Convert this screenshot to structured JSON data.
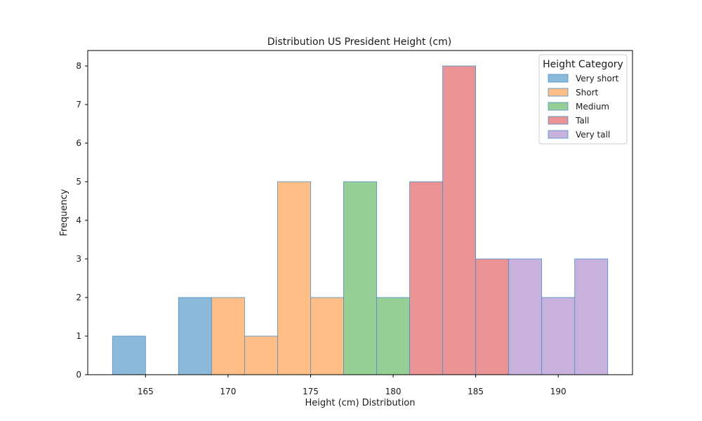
{
  "chart_data": {
    "type": "bar",
    "title": "Distribution US President Height (cm)",
    "xlabel": "Height (cm) Distribution",
    "ylabel": "Frequency",
    "xlim": [
      161.5,
      194.5
    ],
    "ylim": [
      0,
      8.4
    ],
    "xticks": [
      165,
      170,
      175,
      180,
      185,
      190
    ],
    "yticks": [
      0,
      1,
      2,
      3,
      4,
      5,
      6,
      7,
      8
    ],
    "legend": {
      "title": "Height Category",
      "placement": "top-right"
    },
    "series": [
      {
        "name": "Very short",
        "color": "#8ab9d9",
        "bins": [
          {
            "x0": 163,
            "x1": 165,
            "count": 1
          },
          {
            "x0": 167,
            "x1": 169,
            "count": 2
          }
        ]
      },
      {
        "name": "Short",
        "color": "#ffbe86",
        "bins": [
          {
            "x0": 169,
            "x1": 171,
            "count": 2
          },
          {
            "x0": 171,
            "x1": 173,
            "count": 1
          },
          {
            "x0": 173,
            "x1": 175,
            "count": 5
          },
          {
            "x0": 175,
            "x1": 177,
            "count": 2
          }
        ]
      },
      {
        "name": "Medium",
        "color": "#95cf95",
        "bins": [
          {
            "x0": 177,
            "x1": 179,
            "count": 5
          },
          {
            "x0": 179,
            "x1": 181,
            "count": 2
          }
        ]
      },
      {
        "name": "Tall",
        "color": "#e99394",
        "bins": [
          {
            "x0": 181,
            "x1": 183,
            "count": 5
          },
          {
            "x0": 183,
            "x1": 185,
            "count": 8
          },
          {
            "x0": 185,
            "x1": 187,
            "count": 3
          }
        ]
      },
      {
        "name": "Very tall",
        "color": "#c8b1dd",
        "bins": [
          {
            "x0": 187,
            "x1": 189,
            "count": 3
          },
          {
            "x0": 189,
            "x1": 191,
            "count": 2
          },
          {
            "x0": 191,
            "x1": 193,
            "count": 3
          }
        ]
      }
    ],
    "edge_color": "#4a90c8"
  }
}
